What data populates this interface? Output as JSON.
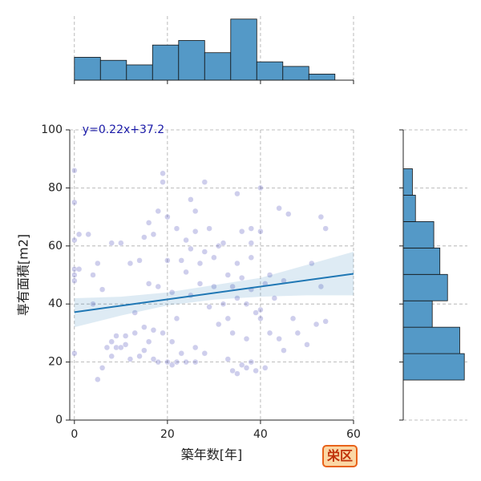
{
  "chart_data": [
    {
      "type": "scatter",
      "xlabel": "築年数[年]",
      "ylabel": "専有面積[m2]",
      "color": "#3b3bb3",
      "x": [
        0,
        0,
        0,
        0,
        0,
        0,
        0,
        1,
        1,
        3,
        4,
        4,
        5,
        5,
        6,
        6,
        7,
        8,
        8,
        8,
        9,
        9,
        10,
        10,
        11,
        11,
        12,
        12,
        13,
        13,
        14,
        14,
        15,
        15,
        15,
        16,
        16,
        16,
        17,
        17,
        17,
        18,
        18,
        18,
        19,
        19,
        19,
        20,
        20,
        20,
        21,
        21,
        21,
        22,
        22,
        22,
        23,
        23,
        24,
        24,
        24,
        25,
        25,
        25,
        26,
        26,
        26,
        26,
        27,
        27,
        28,
        28,
        28,
        29,
        29,
        30,
        30,
        31,
        31,
        32,
        32,
        33,
        33,
        33,
        34,
        34,
        34,
        35,
        35,
        35,
        35,
        36,
        36,
        36,
        37,
        37,
        37,
        38,
        38,
        38,
        38,
        38,
        39,
        39,
        40,
        40,
        40,
        40,
        41,
        41,
        42,
        42,
        43,
        44,
        44,
        45,
        45,
        46,
        47,
        48,
        50,
        51,
        52,
        53,
        53,
        54,
        54
      ],
      "values": [
        86,
        75,
        62,
        52,
        50,
        48,
        23,
        64,
        52,
        64,
        40,
        50,
        54,
        14,
        18,
        45,
        25,
        61,
        27,
        22,
        29,
        25,
        61,
        25,
        26,
        29,
        54,
        21,
        37,
        30,
        55,
        22,
        63,
        24,
        32,
        68,
        47,
        27,
        64,
        31,
        21,
        72,
        46,
        20,
        85,
        82,
        30,
        70,
        55,
        20,
        44,
        27,
        19,
        66,
        35,
        20,
        55,
        23,
        62,
        51,
        20,
        76,
        59,
        43,
        72,
        65,
        25,
        20,
        54,
        47,
        82,
        58,
        23,
        66,
        39,
        56,
        46,
        33,
        60,
        61,
        40,
        50,
        35,
        21,
        46,
        30,
        17,
        78,
        54,
        42,
        16,
        65,
        49,
        19,
        40,
        28,
        18,
        66,
        61,
        56,
        45,
        20,
        37,
        17,
        80,
        65,
        38,
        35,
        47,
        18,
        50,
        30,
        42,
        73,
        28,
        48,
        24,
        71,
        35,
        30,
        26,
        54,
        33,
        70,
        46,
        66,
        34
      ],
      "xlim": [
        -1,
        60
      ],
      "ylim": [
        0,
        100
      ],
      "xticks": [
        0,
        20,
        40,
        60
      ],
      "yticks": [
        0,
        20,
        40,
        60,
        80,
        100
      ],
      "grid": true,
      "fit": {
        "slope": 0.22,
        "intercept": 37.2,
        "label": "y=0.22x+37.2",
        "color": "#1f77b4",
        "ci": {
          "x": [
            0,
            10,
            20,
            30,
            40,
            50,
            60
          ],
          "lower": [
            32,
            36,
            39.5,
            41.5,
            42.5,
            43,
            43
          ],
          "upper": [
            42,
            42.5,
            44,
            46.5,
            49,
            53.5,
            58
          ]
        }
      }
    },
    {
      "type": "histogram",
      "orientation": "vertical",
      "color": "#5499c7",
      "bins": [
        0,
        5.6,
        11.2,
        16.8,
        22.4,
        28,
        33.6,
        39.2,
        44.8,
        50.4,
        56
      ],
      "values": [
        15,
        13,
        10,
        23,
        26,
        18,
        40,
        12,
        9,
        4
      ],
      "xticks": [
        0,
        20,
        40,
        60
      ],
      "vlim": [
        0,
        42
      ],
      "grid": true
    },
    {
      "type": "histogram",
      "orientation": "horizontal",
      "color": "#5499c7",
      "bins": [
        13.8,
        22.9,
        32,
        41.1,
        50.2,
        59.3,
        68.4,
        77.5,
        86.6
      ],
      "values": [
        40,
        37,
        19,
        29,
        24,
        20,
        8,
        6
      ],
      "yticks": [
        0,
        20,
        40,
        60,
        80,
        100
      ],
      "vlim": [
        0,
        42
      ],
      "grid": true
    }
  ],
  "badge": "栄区"
}
